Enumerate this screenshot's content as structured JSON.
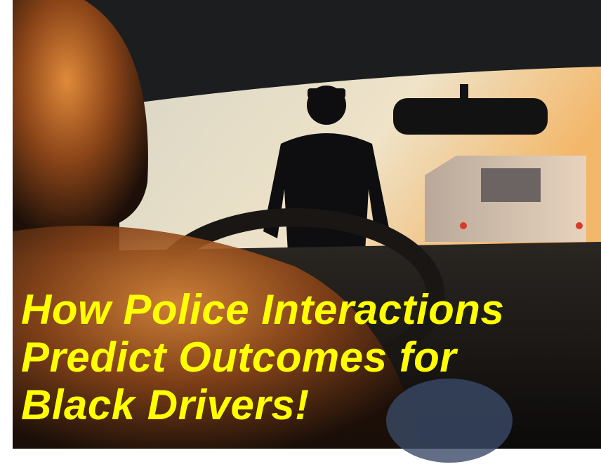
{
  "headline": {
    "lines": [
      "How Police Interactions",
      "Predict Outcomes for",
      "Black Drivers!"
    ]
  }
}
